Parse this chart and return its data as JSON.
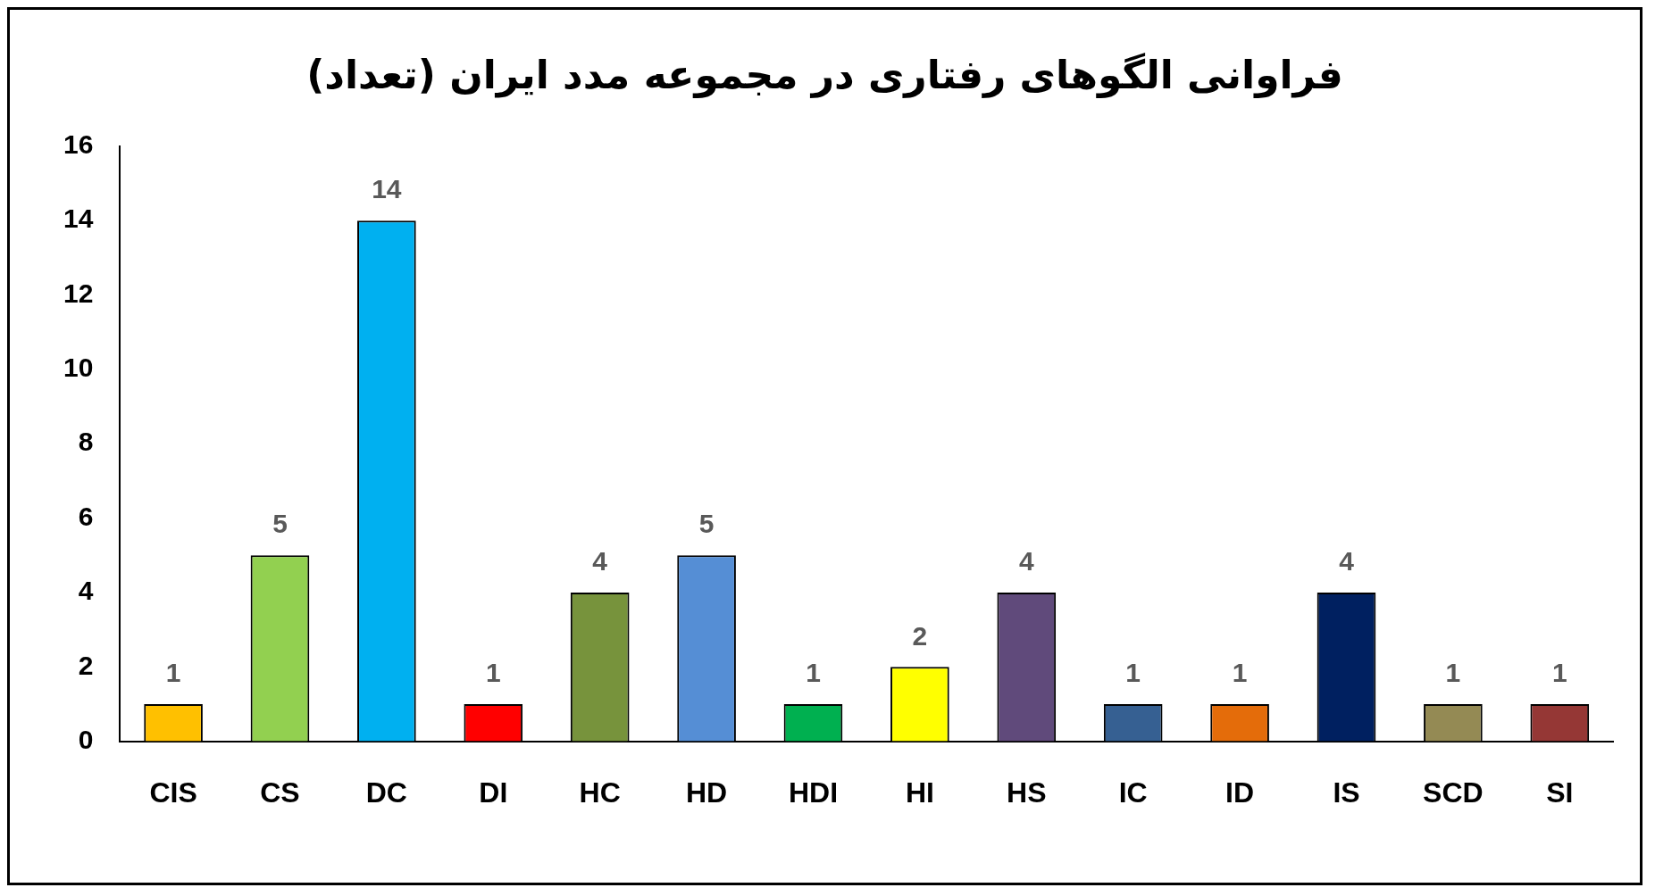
{
  "chart_data": {
    "type": "bar",
    "title": "فراوانی الگوهای رفتاری در مجموعه مدد ایران (تعداد)",
    "categories": [
      "CIS",
      "CS",
      "DC",
      "DI",
      "HC",
      "HD",
      "HDI",
      "HI",
      "HS",
      "IC",
      "ID",
      "IS",
      "SCD",
      "SI"
    ],
    "values": [
      1,
      5,
      14,
      1,
      4,
      5,
      1,
      2,
      4,
      1,
      1,
      4,
      1,
      1
    ],
    "colors": [
      "#ffc000",
      "#92d050",
      "#00b0f0",
      "#ff0000",
      "#77933c",
      "#558ed5",
      "#00b050",
      "#ffff00",
      "#604a7b",
      "#366092",
      "#e46c0a",
      "#002060",
      "#948a54",
      "#953735"
    ],
    "ylim": [
      0,
      16
    ],
    "yticks": [
      0,
      2,
      4,
      6,
      8,
      10,
      12,
      14,
      16
    ],
    "grid": false,
    "legend": false,
    "data_labels": true
  }
}
